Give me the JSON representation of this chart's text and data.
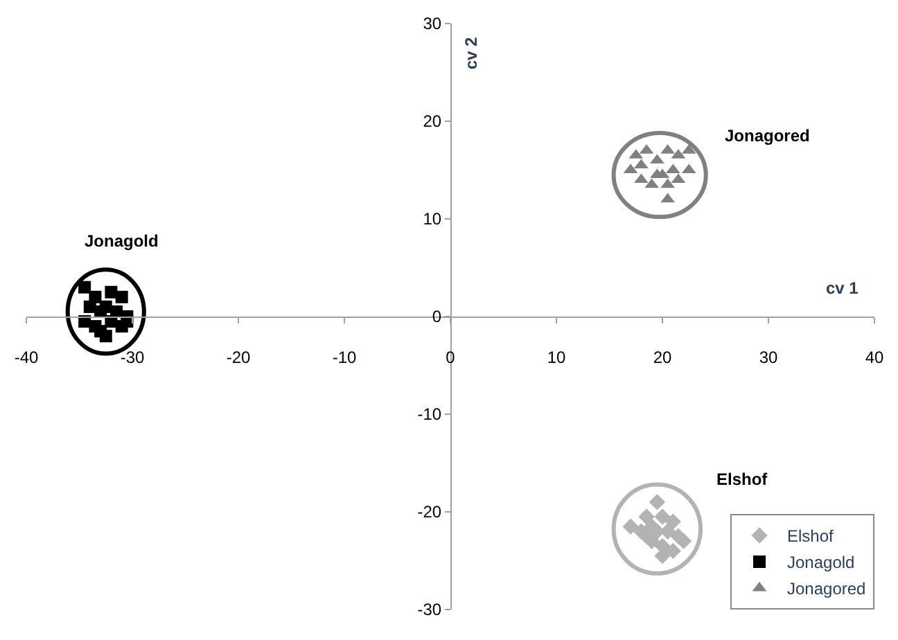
{
  "chart_data": {
    "type": "scatter",
    "xlabel": "cv 1",
    "ylabel": "cv 2",
    "xlim": [
      -40,
      40
    ],
    "xticks": [
      -40,
      -30,
      -20,
      -10,
      0,
      10,
      20,
      30,
      40
    ],
    "ylim": [
      -30,
      30
    ],
    "yticks": [
      -30,
      -20,
      -10,
      0,
      10,
      20,
      30
    ],
    "grid": false,
    "legend": "bottom right",
    "series": [
      {
        "name": "Elshof",
        "color": "#b3b3b3",
        "marker": "diamond",
        "x": [
          19.5,
          18.5,
          20,
          21,
          17,
          18,
          19,
          20.5,
          21.5,
          22,
          19,
          20,
          18.5,
          21,
          20,
          19.5
        ],
        "values": [
          -19,
          -20.5,
          -20.5,
          -21,
          -21.5,
          -22,
          -21.5,
          -22,
          -22.5,
          -23,
          -23,
          -23.5,
          -22.5,
          -24,
          -24.5,
          -22
        ]
      },
      {
        "name": "Jonagold",
        "color": "#000000",
        "marker": "square",
        "x": [
          -34.5,
          -33.5,
          -32,
          -31,
          -34,
          -33,
          -32.5,
          -31.5,
          -30.5,
          -33.5,
          -32,
          -31,
          -32.5,
          -30.5,
          -33,
          -34.5
        ],
        "values": [
          3,
          2,
          2.5,
          2,
          1,
          0.5,
          1,
          0.5,
          0,
          -1,
          -0.5,
          -1,
          -2,
          -0.5,
          -1.5,
          -0.5
        ]
      },
      {
        "name": "Jonagored",
        "color": "#808080",
        "marker": "triangle",
        "x": [
          17.5,
          18.5,
          20.5,
          21.5,
          22.5,
          17,
          18,
          19.5,
          20,
          21,
          22.5,
          18,
          19,
          20.5,
          21.5,
          19.5,
          20.5
        ],
        "values": [
          16.5,
          17,
          17,
          16.5,
          17,
          15,
          15.5,
          16,
          14.5,
          15,
          15,
          14,
          13.5,
          13.5,
          14,
          14.5,
          12
        ]
      }
    ],
    "annotations": [
      "Jonagold",
      "Jonagored",
      "Elshof"
    ]
  }
}
